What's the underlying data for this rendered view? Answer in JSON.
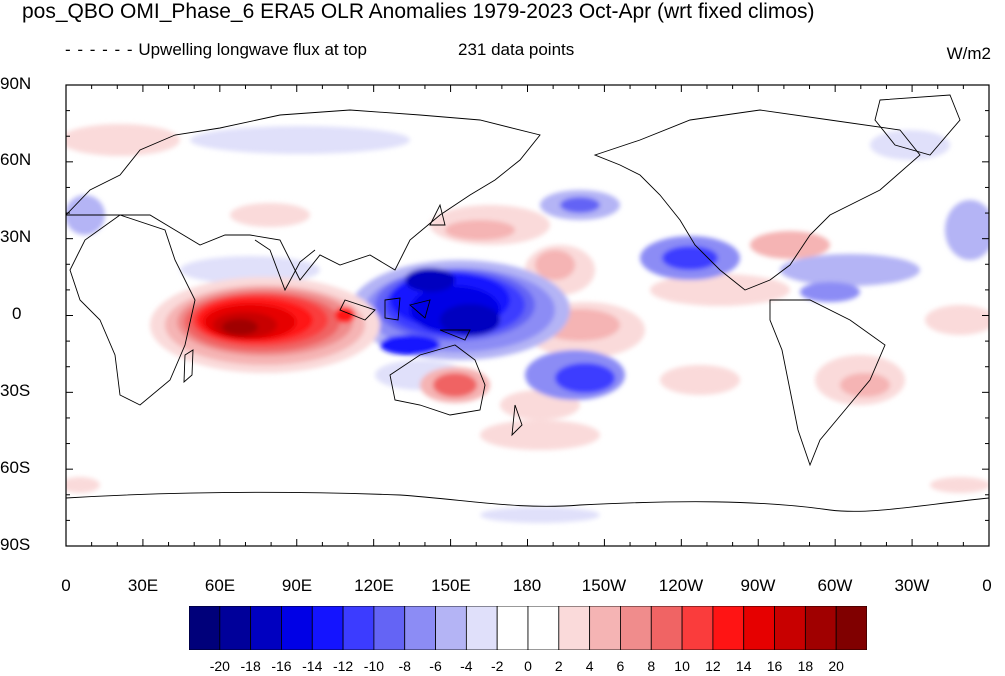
{
  "title": "pos_QBO OMI_Phase_6 ERA5 OLR Anomalies 1979-2023 Oct-Apr (wrt fixed climos)",
  "subtitle_left": "Upwelling longwave flux at top",
  "subtitle_center": "231 data points",
  "units": "W/m2",
  "lat_labels": [
    "90N",
    "60N",
    "30N",
    "0",
    "30S",
    "60S",
    "90S"
  ],
  "lon_labels": [
    "0",
    "30E",
    "60E",
    "90E",
    "120E",
    "150E",
    "180",
    "150W",
    "120W",
    "90W",
    "60W",
    "30W",
    "0"
  ],
  "colorbar": {
    "labels": [
      "-20",
      "-18",
      "-16",
      "-14",
      "-12",
      "-10",
      "-8",
      "-6",
      "-4",
      "-2",
      "0",
      "2",
      "4",
      "6",
      "8",
      "10",
      "12",
      "14",
      "16",
      "18",
      "20"
    ],
    "colors": [
      "#00007a",
      "#00009a",
      "#0000c0",
      "#0000e6",
      "#1414ff",
      "#3c3cff",
      "#6464f5",
      "#8c8cf5",
      "#b4b4f5",
      "#e0e0fa",
      "#ffffff",
      "#ffffff",
      "#fadada",
      "#f5b4b4",
      "#f08c8c",
      "#f06464",
      "#fa3c3c",
      "#ff1414",
      "#e60000",
      "#c80000",
      "#a00000",
      "#800000"
    ]
  }
}
